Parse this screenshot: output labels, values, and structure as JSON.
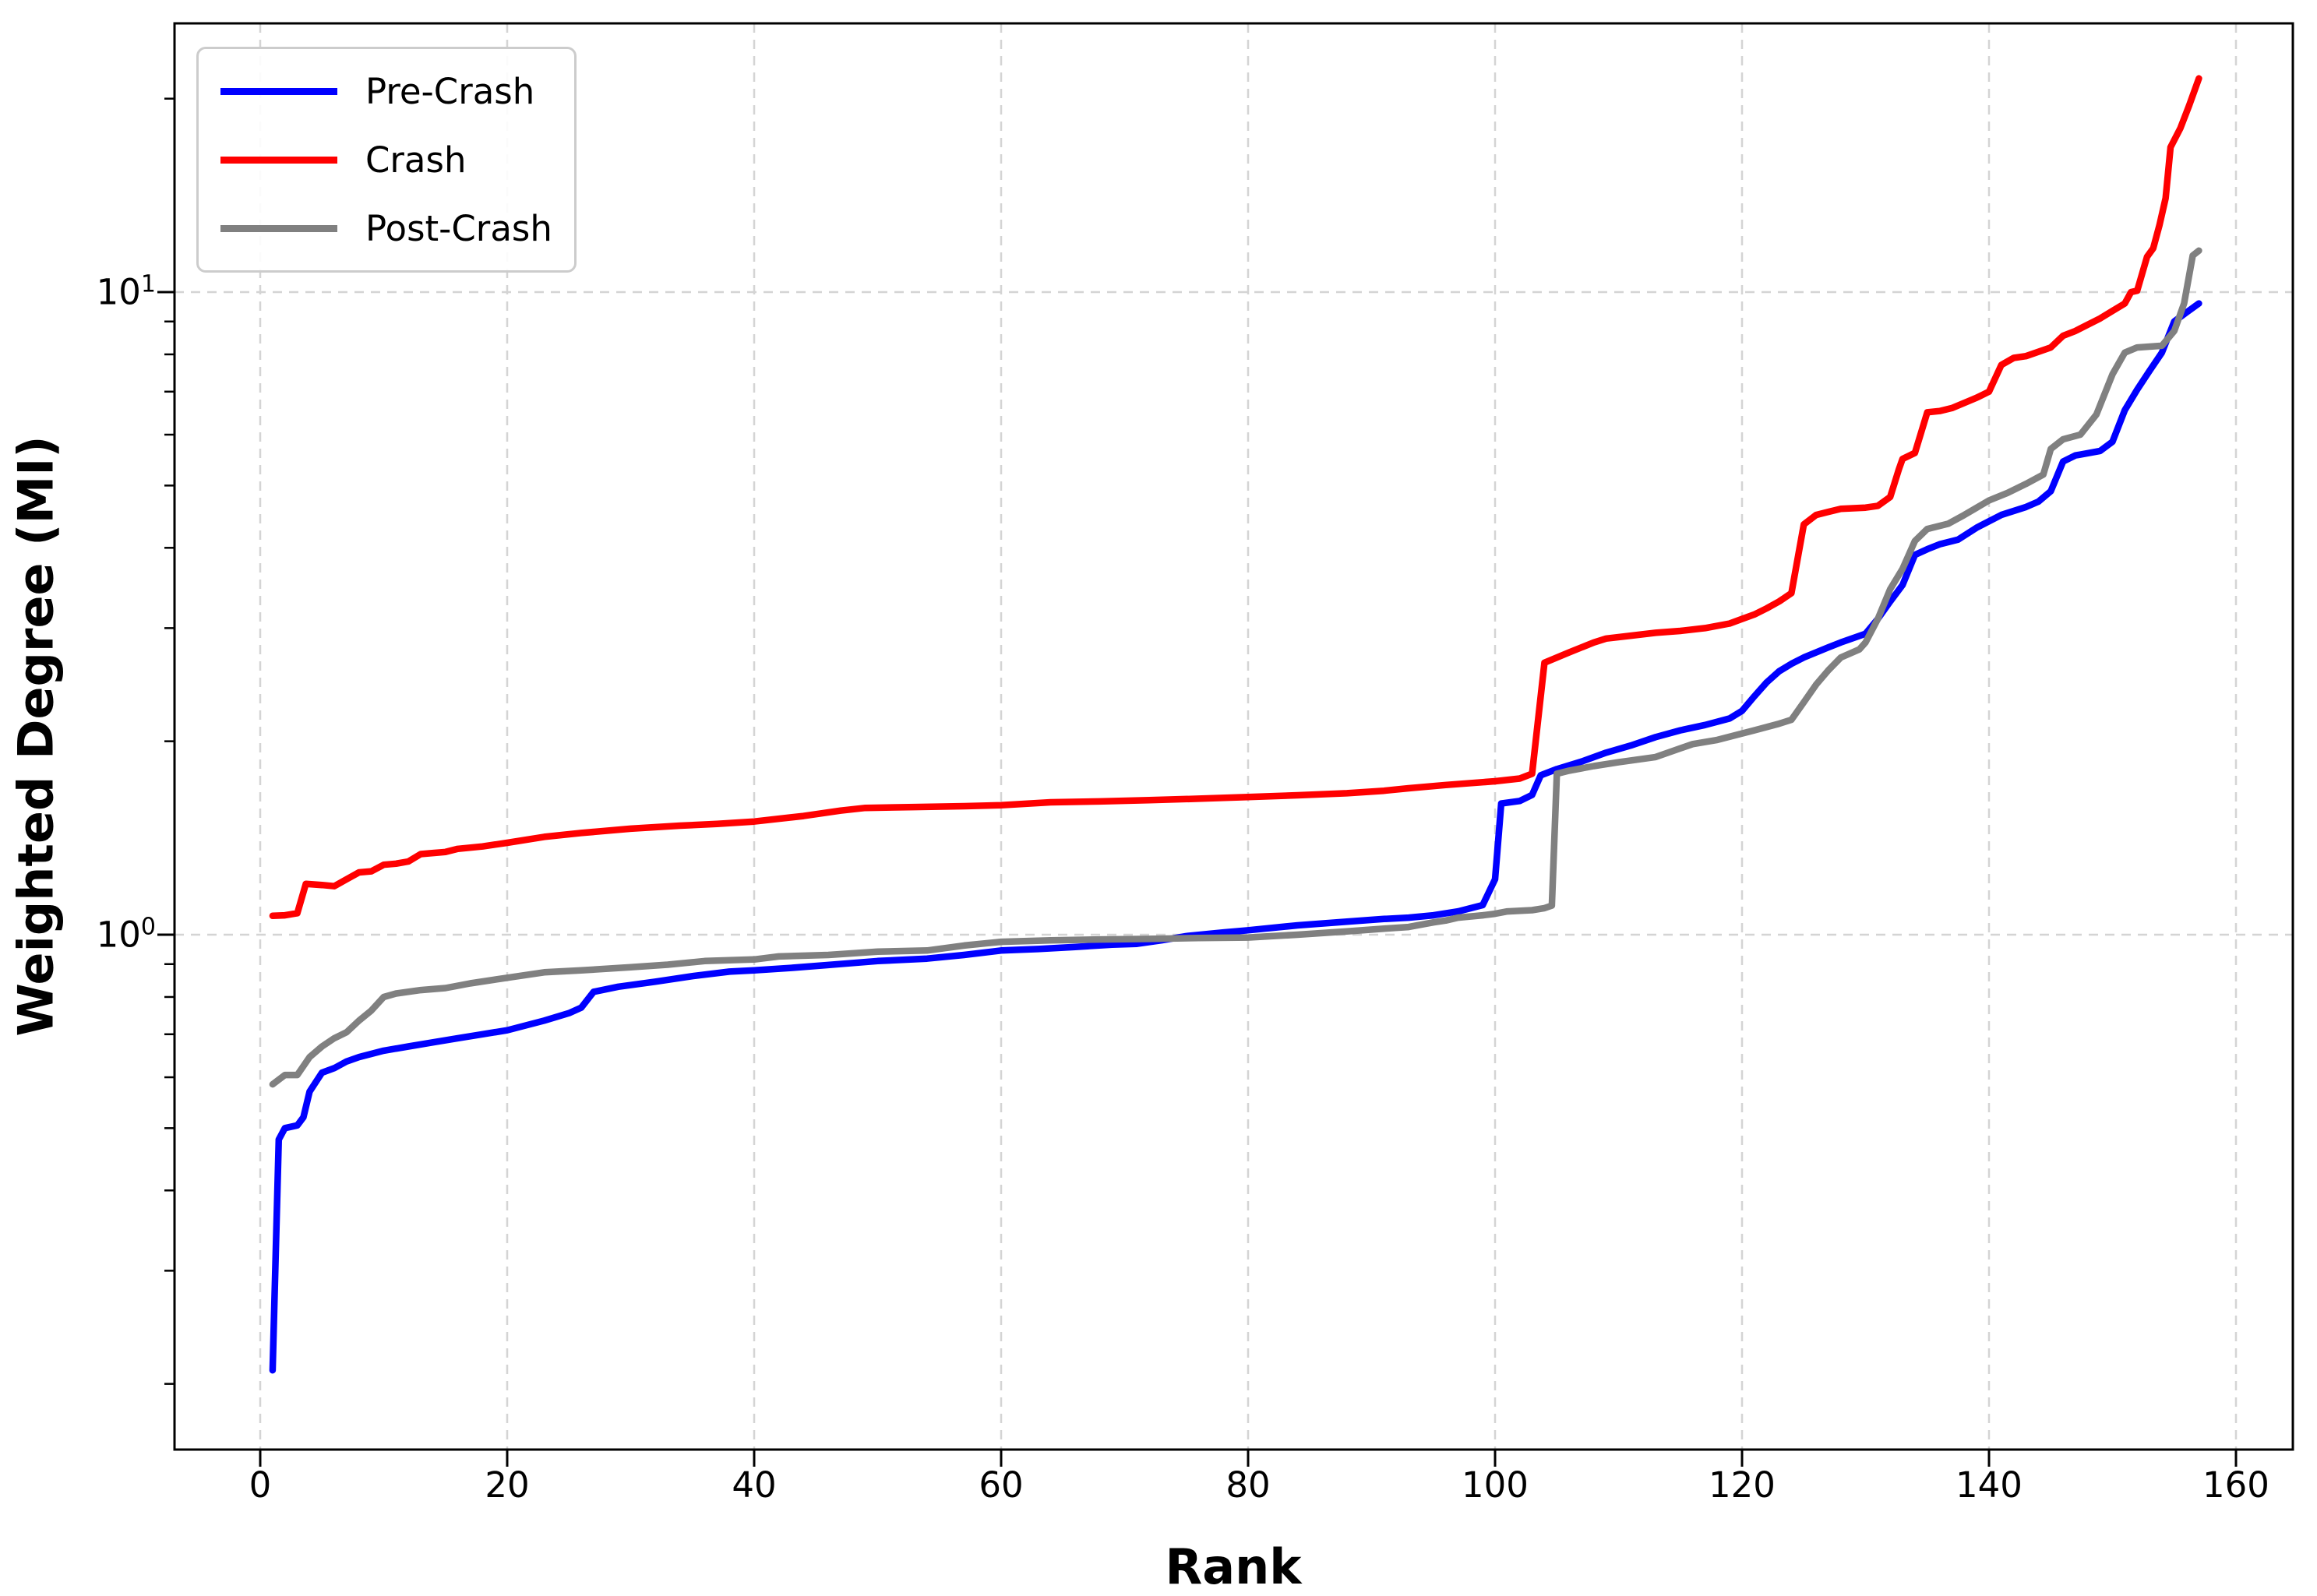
{
  "chart_data": {
    "type": "line",
    "title": "",
    "xlabel": "Rank",
    "ylabel": "Weighted Degree (MI)",
    "background_color": "#ffffff",
    "grid": {
      "show": true,
      "style": "dashed",
      "color": "#d4d4d4"
    },
    "x_axis": {
      "scale": "linear",
      "ticks": [
        0,
        20,
        40,
        60,
        80,
        100,
        120,
        140,
        160
      ],
      "tick_labels": [
        "0",
        "20",
        "40",
        "60",
        "80",
        "100",
        "120",
        "140",
        "160"
      ],
      "range_approx": [
        -7,
        165
      ]
    },
    "y_axis": {
      "scale": "log",
      "major_ticks": [
        {
          "value": 1,
          "base": "10",
          "exp": "0"
        },
        {
          "value": 10,
          "base": "10",
          "exp": "1"
        }
      ],
      "minor_ticks": [
        0.2,
        0.3,
        0.4,
        0.5,
        0.6,
        0.7,
        0.8,
        0.9,
        2,
        3,
        4,
        5,
        6,
        7,
        8,
        9,
        20
      ],
      "range_approx": [
        0.16,
        26
      ]
    },
    "legend": {
      "position": "upper-left",
      "entries": [
        {
          "label": "Pre-Crash",
          "color": "#0000ff"
        },
        {
          "label": "Crash",
          "color": "#ff0000"
        },
        {
          "label": "Post-Crash",
          "color": "#808080"
        }
      ]
    },
    "series": [
      {
        "name": "Pre-Crash",
        "color": "#0000ff",
        "points": [
          [
            1,
            0.21
          ],
          [
            1.5,
            0.48
          ],
          [
            2,
            0.5
          ],
          [
            3,
            0.505
          ],
          [
            3.5,
            0.52
          ],
          [
            4,
            0.57
          ],
          [
            5,
            0.61
          ],
          [
            6,
            0.62
          ],
          [
            7,
            0.635
          ],
          [
            8,
            0.645
          ],
          [
            10,
            0.66
          ],
          [
            12,
            0.67
          ],
          [
            14,
            0.68
          ],
          [
            16,
            0.69
          ],
          [
            18,
            0.7
          ],
          [
            20,
            0.71
          ],
          [
            23,
            0.735
          ],
          [
            25,
            0.755
          ],
          [
            26,
            0.77
          ],
          [
            27,
            0.815
          ],
          [
            29,
            0.83
          ],
          [
            32,
            0.845
          ],
          [
            35,
            0.862
          ],
          [
            38,
            0.876
          ],
          [
            40,
            0.88
          ],
          [
            43,
            0.888
          ],
          [
            46,
            0.897
          ],
          [
            50,
            0.91
          ],
          [
            54,
            0.918
          ],
          [
            57,
            0.93
          ],
          [
            60,
            0.945
          ],
          [
            63,
            0.95
          ],
          [
            66,
            0.957
          ],
          [
            69,
            0.965
          ],
          [
            71,
            0.968
          ],
          [
            73,
            0.98
          ],
          [
            75,
            0.995
          ],
          [
            78,
            1.008
          ],
          [
            80,
            1.016
          ],
          [
            84,
            1.034
          ],
          [
            88,
            1.048
          ],
          [
            91,
            1.058
          ],
          [
            93,
            1.063
          ],
          [
            95,
            1.072
          ],
          [
            97,
            1.087
          ],
          [
            99,
            1.112
          ],
          [
            100,
            1.22
          ],
          [
            100.5,
            1.6
          ],
          [
            102,
            1.615
          ],
          [
            103,
            1.65
          ],
          [
            103.7,
            1.77
          ],
          [
            105,
            1.81
          ],
          [
            107,
            1.86
          ],
          [
            109,
            1.92
          ],
          [
            111,
            1.97
          ],
          [
            113,
            2.03
          ],
          [
            115,
            2.08
          ],
          [
            117,
            2.12
          ],
          [
            119,
            2.17
          ],
          [
            120,
            2.23
          ],
          [
            121,
            2.35
          ],
          [
            122,
            2.47
          ],
          [
            123,
            2.57
          ],
          [
            124,
            2.64
          ],
          [
            125,
            2.7
          ],
          [
            127,
            2.8
          ],
          [
            128,
            2.85
          ],
          [
            130,
            2.94
          ],
          [
            131,
            3.1
          ],
          [
            132,
            3.3
          ],
          [
            133,
            3.5
          ],
          [
            134,
            3.9
          ],
          [
            135,
            3.98
          ],
          [
            136,
            4.05
          ],
          [
            137.5,
            4.12
          ],
          [
            139,
            4.3
          ],
          [
            141,
            4.5
          ],
          [
            143,
            4.63
          ],
          [
            144,
            4.72
          ],
          [
            145,
            4.9
          ],
          [
            146,
            5.45
          ],
          [
            147,
            5.57
          ],
          [
            149,
            5.66
          ],
          [
            150,
            5.85
          ],
          [
            151,
            6.55
          ],
          [
            152,
            7.05
          ],
          [
            153,
            7.54
          ],
          [
            154,
            8.05
          ],
          [
            155,
            9.0
          ],
          [
            156,
            9.3
          ],
          [
            157,
            9.6
          ]
        ]
      },
      {
        "name": "Crash",
        "color": "#ff0000",
        "points": [
          [
            1,
            1.07
          ],
          [
            2,
            1.072
          ],
          [
            3,
            1.08
          ],
          [
            3.7,
            1.2
          ],
          [
            5,
            1.195
          ],
          [
            6,
            1.19
          ],
          [
            7,
            1.22
          ],
          [
            8,
            1.25
          ],
          [
            9,
            1.255
          ],
          [
            10,
            1.285
          ],
          [
            11,
            1.29
          ],
          [
            12,
            1.3
          ],
          [
            13,
            1.335
          ],
          [
            14,
            1.34
          ],
          [
            15,
            1.345
          ],
          [
            16,
            1.36
          ],
          [
            18,
            1.372
          ],
          [
            20,
            1.39
          ],
          [
            23,
            1.42
          ],
          [
            26,
            1.44
          ],
          [
            30,
            1.462
          ],
          [
            34,
            1.478
          ],
          [
            37,
            1.487
          ],
          [
            40,
            1.5
          ],
          [
            44,
            1.53
          ],
          [
            47,
            1.56
          ],
          [
            49,
            1.575
          ],
          [
            53,
            1.58
          ],
          [
            57,
            1.585
          ],
          [
            60,
            1.59
          ],
          [
            64,
            1.607
          ],
          [
            68,
            1.612
          ],
          [
            72,
            1.62
          ],
          [
            76,
            1.628
          ],
          [
            80,
            1.638
          ],
          [
            84,
            1.648
          ],
          [
            88,
            1.66
          ],
          [
            91,
            1.675
          ],
          [
            93,
            1.69
          ],
          [
            96,
            1.71
          ],
          [
            100,
            1.733
          ],
          [
            102,
            1.75
          ],
          [
            103,
            1.78
          ],
          [
            104,
            2.65
          ],
          [
            106,
            2.75
          ],
          [
            108,
            2.85
          ],
          [
            109,
            2.89
          ],
          [
            111,
            2.92
          ],
          [
            113,
            2.95
          ],
          [
            115,
            2.97
          ],
          [
            117,
            3.0
          ],
          [
            119,
            3.05
          ],
          [
            120,
            3.1
          ],
          [
            121,
            3.15
          ],
          [
            122,
            3.22
          ],
          [
            123,
            3.3
          ],
          [
            124,
            3.4
          ],
          [
            125,
            4.35
          ],
          [
            126,
            4.5
          ],
          [
            127,
            4.55
          ],
          [
            128,
            4.6
          ],
          [
            130,
            4.62
          ],
          [
            131,
            4.65
          ],
          [
            132,
            4.8
          ],
          [
            132.7,
            5.3
          ],
          [
            133,
            5.5
          ],
          [
            134,
            5.62
          ],
          [
            135,
            6.5
          ],
          [
            136,
            6.53
          ],
          [
            137,
            6.6
          ],
          [
            139,
            6.85
          ],
          [
            140,
            7.0
          ],
          [
            141,
            7.7
          ],
          [
            142,
            7.9
          ],
          [
            143,
            7.95
          ],
          [
            145,
            8.2
          ],
          [
            146,
            8.55
          ],
          [
            147,
            8.7
          ],
          [
            148,
            8.9
          ],
          [
            149,
            9.1
          ],
          [
            150,
            9.35
          ],
          [
            151,
            9.6
          ],
          [
            151.5,
            10.0
          ],
          [
            152,
            10.05
          ],
          [
            152.8,
            11.35
          ],
          [
            153.3,
            11.7
          ],
          [
            153.8,
            12.7
          ],
          [
            154.3,
            14.0
          ],
          [
            154.7,
            16.8
          ],
          [
            155.5,
            18.0
          ],
          [
            156.2,
            19.5
          ],
          [
            157,
            21.5
          ]
        ]
      },
      {
        "name": "Post-Crash",
        "color": "#808080",
        "points": [
          [
            1,
            0.585
          ],
          [
            2,
            0.605
          ],
          [
            3,
            0.605
          ],
          [
            4,
            0.645
          ],
          [
            5,
            0.67
          ],
          [
            6,
            0.69
          ],
          [
            7,
            0.705
          ],
          [
            8,
            0.735
          ],
          [
            9,
            0.762
          ],
          [
            10,
            0.8
          ],
          [
            11,
            0.81
          ],
          [
            13,
            0.82
          ],
          [
            15,
            0.826
          ],
          [
            17,
            0.84
          ],
          [
            20,
            0.857
          ],
          [
            23,
            0.874
          ],
          [
            26,
            0.88
          ],
          [
            30,
            0.89
          ],
          [
            33,
            0.898
          ],
          [
            36,
            0.91
          ],
          [
            40,
            0.915
          ],
          [
            42,
            0.925
          ],
          [
            46,
            0.93
          ],
          [
            50,
            0.941
          ],
          [
            54,
            0.945
          ],
          [
            57,
            0.962
          ],
          [
            60,
            0.975
          ],
          [
            64,
            0.98
          ],
          [
            68,
            0.983
          ],
          [
            72,
            0.985
          ],
          [
            76,
            0.988
          ],
          [
            80,
            0.99
          ],
          [
            84,
            1.0
          ],
          [
            88,
            1.012
          ],
          [
            91,
            1.022
          ],
          [
            93,
            1.028
          ],
          [
            95,
            1.045
          ],
          [
            96,
            1.052
          ],
          [
            97,
            1.063
          ],
          [
            99,
            1.072
          ],
          [
            100,
            1.078
          ],
          [
            101,
            1.087
          ],
          [
            103,
            1.092
          ],
          [
            104,
            1.1
          ],
          [
            104.6,
            1.11
          ],
          [
            105,
            1.78
          ],
          [
            106,
            1.8
          ],
          [
            108,
            1.83
          ],
          [
            110,
            1.855
          ],
          [
            113,
            1.89
          ],
          [
            115,
            1.95
          ],
          [
            116,
            1.98
          ],
          [
            118,
            2.01
          ],
          [
            121,
            2.08
          ],
          [
            123,
            2.13
          ],
          [
            124,
            2.16
          ],
          [
            125,
            2.3
          ],
          [
            126,
            2.45
          ],
          [
            127,
            2.58
          ],
          [
            128,
            2.7
          ],
          [
            129.5,
            2.78
          ],
          [
            130,
            2.85
          ],
          [
            131,
            3.1
          ],
          [
            132,
            3.45
          ],
          [
            133,
            3.71
          ],
          [
            134,
            4.1
          ],
          [
            135,
            4.28
          ],
          [
            136.7,
            4.36
          ],
          [
            138,
            4.5
          ],
          [
            140,
            4.74
          ],
          [
            141.5,
            4.87
          ],
          [
            143,
            5.03
          ],
          [
            144.4,
            5.2
          ],
          [
            145,
            5.7
          ],
          [
            146,
            5.9
          ],
          [
            147.4,
            6.0
          ],
          [
            148.7,
            6.45
          ],
          [
            150,
            7.45
          ],
          [
            151,
            8.05
          ],
          [
            152,
            8.2
          ],
          [
            154,
            8.25
          ],
          [
            155,
            8.7
          ],
          [
            155.8,
            9.6
          ],
          [
            156.5,
            11.4
          ],
          [
            157,
            11.6
          ]
        ]
      }
    ]
  }
}
